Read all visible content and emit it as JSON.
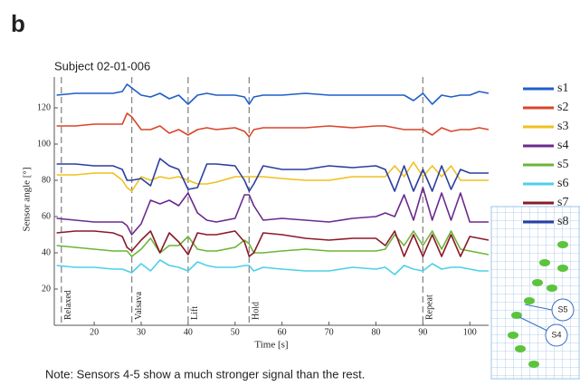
{
  "panel_label": "b",
  "note": "Note: Sensors 4-5 show a much stronger signal than the rest.",
  "chart_data": {
    "type": "line",
    "title": "Subject 02-01-006",
    "x_label": "Time [s]",
    "y_label": "Sensor angle [°]",
    "xlim": [
      11.5,
      104
    ],
    "ylim": [
      0,
      137
    ],
    "xticks": [
      20,
      30,
      40,
      50,
      60,
      70,
      80,
      90,
      100
    ],
    "yticks": [
      20,
      40,
      60,
      80,
      100,
      120
    ],
    "events": [
      {
        "x": 13,
        "label": "Relaxed"
      },
      {
        "x": 28,
        "label": "Valsava"
      },
      {
        "x": 40,
        "label": "Lift"
      },
      {
        "x": 53,
        "label": "Hold"
      },
      {
        "x": 90,
        "label": "Repeat"
      }
    ],
    "inset_labels": [
      "S5",
      "S4"
    ],
    "x": [
      12,
      16,
      20,
      24,
      26,
      27,
      28,
      30,
      32,
      34,
      36,
      38,
      40,
      42,
      44,
      46,
      50,
      52,
      53,
      54,
      56,
      60,
      65,
      70,
      75,
      80,
      82,
      84,
      86,
      88,
      90,
      92,
      94,
      96,
      98,
      100,
      102,
      104
    ],
    "series": [
      {
        "name": "s1",
        "color": "#1f5fc8",
        "values": [
          127,
          128,
          128,
          128,
          129,
          133,
          131,
          127,
          126,
          128,
          125,
          127,
          122,
          127,
          128,
          127,
          127,
          126,
          122,
          126,
          127,
          127,
          128,
          127,
          127,
          127,
          127,
          127,
          127,
          124,
          128,
          122,
          127,
          126,
          127,
          127,
          129,
          128
        ]
      },
      {
        "name": "s2",
        "color": "#d9452b",
        "values": [
          110,
          110,
          111,
          111,
          111,
          117,
          115,
          108,
          108,
          110,
          106,
          108,
          105,
          108,
          109,
          108,
          109,
          107,
          104,
          108,
          109,
          109,
          109,
          110,
          109,
          110,
          110,
          109,
          108,
          108,
          108,
          105,
          109,
          107,
          108,
          108,
          109,
          108
        ]
      },
      {
        "name": "s3",
        "color": "#f0c020",
        "values": [
          83,
          83,
          84,
          84,
          80,
          76,
          74,
          82,
          80,
          82,
          81,
          82,
          80,
          78,
          78,
          79,
          82,
          82,
          82,
          82,
          82,
          81,
          80,
          80,
          82,
          82,
          82,
          88,
          82,
          90,
          82,
          88,
          82,
          88,
          80,
          80,
          80,
          80
        ]
      },
      {
        "name": "s4",
        "color": "#6b2a8c",
        "values": [
          59,
          58,
          57,
          57,
          57,
          55,
          50,
          56,
          69,
          67,
          69,
          66,
          73,
          62,
          58,
          57,
          59,
          72,
          72,
          66,
          58,
          59,
          58,
          57,
          59,
          60,
          62,
          60,
          72,
          58,
          76,
          58,
          73,
          58,
          73,
          57,
          57,
          57
        ]
      },
      {
        "name": "s5",
        "color": "#6cb535",
        "values": [
          44,
          43,
          42,
          41,
          41,
          41,
          38,
          42,
          48,
          40,
          44,
          44,
          49,
          42,
          41,
          41,
          43,
          47,
          45,
          40,
          40,
          41,
          42,
          41,
          41,
          41,
          42,
          50,
          44,
          52,
          44,
          52,
          42,
          52,
          42,
          41,
          40,
          39
        ]
      },
      {
        "name": "s6",
        "color": "#4dd0e8",
        "values": [
          33,
          32,
          32,
          31,
          31,
          30,
          29,
          34,
          30,
          36,
          33,
          32,
          30,
          35,
          33,
          32,
          32,
          33,
          33,
          30,
          32,
          31,
          30,
          30,
          32,
          31,
          32,
          28,
          33,
          31,
          30,
          34,
          31,
          32,
          32,
          31,
          30,
          30
        ]
      },
      {
        "name": "s7",
        "color": "#8b1a2a",
        "values": [
          51,
          52,
          52,
          51,
          49,
          43,
          41,
          47,
          52,
          40,
          51,
          46,
          39,
          51,
          50,
          50,
          52,
          46,
          38,
          40,
          51,
          50,
          48,
          47,
          48,
          48,
          44,
          52,
          38,
          50,
          38,
          50,
          38,
          50,
          38,
          49,
          48,
          47
        ]
      },
      {
        "name": "s8",
        "color": "#2a3fa0",
        "values": [
          89,
          89,
          88,
          88,
          86,
          80,
          80,
          81,
          77,
          92,
          88,
          86,
          75,
          76,
          89,
          89,
          88,
          80,
          74,
          78,
          88,
          86,
          86,
          88,
          87,
          88,
          86,
          74,
          88,
          74,
          86,
          74,
          88,
          75,
          86,
          84,
          84,
          84
        ]
      }
    ]
  }
}
